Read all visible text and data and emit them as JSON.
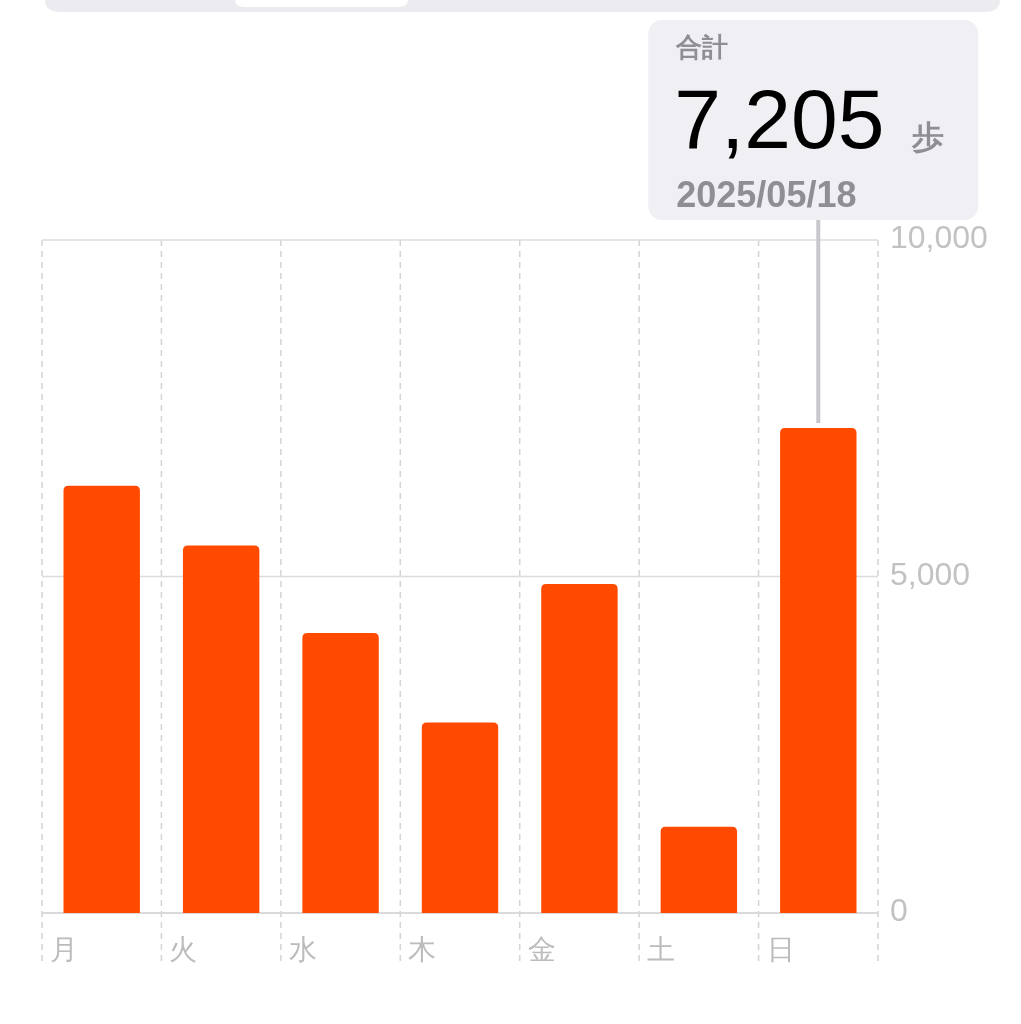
{
  "chart_data": {
    "type": "bar",
    "categories": [
      "月",
      "火",
      "水",
      "木",
      "金",
      "土",
      "日"
    ],
    "values": [
      6350,
      5460,
      4160,
      2830,
      4890,
      1280,
      7205
    ],
    "color": "#ff4a00",
    "ylim": [
      0,
      10000
    ],
    "yticks": [
      0,
      {
        "value": 5000,
        "label": "5,000"
      },
      {
        "value": 10000,
        "label": "10,000"
      }
    ],
    "grid": true,
    "annotations": [
      "合計",
      "7,205",
      "歩",
      "2025/05/18"
    ]
  }
}
